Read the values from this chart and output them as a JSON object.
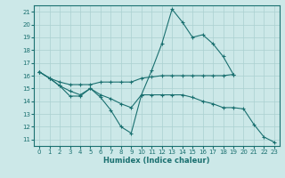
{
  "xlabel": "Humidex (Indice chaleur)",
  "ylabel": "",
  "bg_color": "#cce8e8",
  "grid_color": "#aad0d0",
  "line_color": "#1a7070",
  "xlim": [
    -0.5,
    23.5
  ],
  "ylim": [
    10.5,
    21.5
  ],
  "xticks": [
    0,
    1,
    2,
    3,
    4,
    5,
    6,
    7,
    8,
    9,
    10,
    11,
    12,
    13,
    14,
    15,
    16,
    17,
    18,
    19,
    20,
    21,
    22,
    23
  ],
  "yticks": [
    11,
    12,
    13,
    14,
    15,
    16,
    17,
    18,
    19,
    20,
    21
  ],
  "lines": [
    {
      "x": [
        0,
        1,
        2,
        3,
        4,
        5,
        6,
        7,
        8,
        9,
        10,
        11,
        12,
        13,
        14,
        15,
        16,
        17,
        18,
        19,
        20,
        21,
        22,
        23
      ],
      "y": [
        16.3,
        15.8,
        15.2,
        14.4,
        14.4,
        15.0,
        14.3,
        13.3,
        12.0,
        11.5,
        14.5,
        16.4,
        18.5,
        21.2,
        20.2,
        19.0,
        19.2,
        18.5,
        17.5,
        16.1,
        null,
        null,
        null,
        null
      ]
    },
    {
      "x": [
        0,
        1,
        2,
        3,
        4,
        5,
        6,
        7,
        8,
        9,
        10,
        11,
        12,
        13,
        14,
        15,
        16,
        17,
        18,
        19
      ],
      "y": [
        16.3,
        15.8,
        15.5,
        15.3,
        15.3,
        15.3,
        15.5,
        15.5,
        15.5,
        15.5,
        15.8,
        15.9,
        16.0,
        16.0,
        16.0,
        16.0,
        16.0,
        16.0,
        16.0,
        16.1
      ]
    },
    {
      "x": [
        0,
        1,
        2,
        3,
        4,
        5,
        6,
        7,
        8,
        9,
        10,
        11,
        12,
        13,
        14,
        15,
        16,
        17,
        18,
        19,
        20,
        21,
        22,
        23
      ],
      "y": [
        16.3,
        15.8,
        15.2,
        14.8,
        14.5,
        15.0,
        14.5,
        14.2,
        13.8,
        13.5,
        14.5,
        14.5,
        14.5,
        14.5,
        14.5,
        14.3,
        14.0,
        13.8,
        13.5,
        13.5,
        13.4,
        12.2,
        11.2,
        10.8
      ]
    }
  ]
}
